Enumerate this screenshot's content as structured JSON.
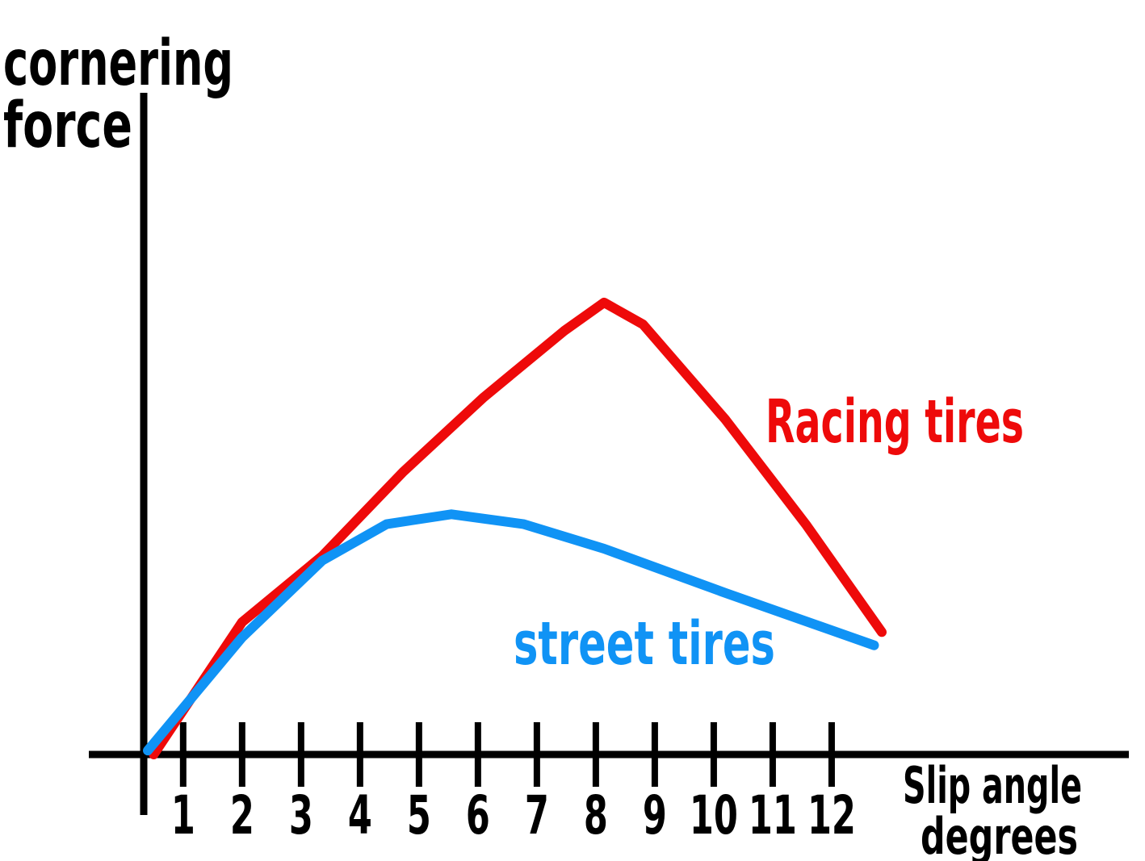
{
  "chart_data": {
    "type": "line",
    "y_label": [
      "cornering",
      "force"
    ],
    "x_label": [
      "Slip angle",
      "degrees"
    ],
    "xlim": [
      -0.6,
      17
    ],
    "ylim": [
      0,
      100
    ],
    "xticks": [
      1,
      2,
      3,
      4,
      5,
      6,
      7,
      8,
      9,
      10,
      11,
      12
    ],
    "series": [
      {
        "name": "Racing tires",
        "color": "#ee0a0a",
        "x": [
          0.5,
          2,
          3.36,
          4.73,
          6.1,
          7.46,
          8.14,
          8.8,
          10.2,
          11.56,
          12.85
        ],
        "values": [
          0,
          20,
          30,
          42.7,
          54,
          64,
          68.3,
          65,
          50.6,
          34.8,
          18.5
        ]
      },
      {
        "name": "street tires",
        "color": "#1093f5",
        "x": [
          0.4,
          2,
          3.36,
          4.45,
          5.55,
          6.78,
          8.14,
          10.2,
          12.72
        ],
        "values": [
          0.6,
          17.7,
          29.3,
          34.8,
          36.3,
          34.8,
          31.1,
          24.4,
          16.5
        ]
      }
    ]
  }
}
